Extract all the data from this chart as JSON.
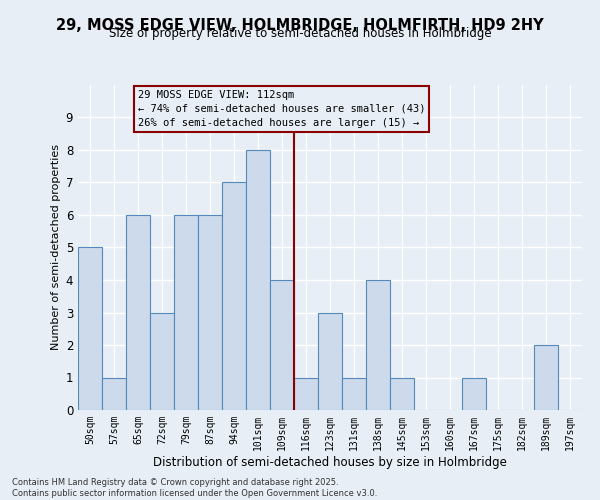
{
  "title_line1": "29, MOSS EDGE VIEW, HOLMBRIDGE, HOLMFIRTH, HD9 2HY",
  "title_line2": "Size of property relative to semi-detached houses in Holmbridge",
  "xlabel": "Distribution of semi-detached houses by size in Holmbridge",
  "ylabel": "Number of semi-detached properties",
  "categories": [
    "50sqm",
    "57sqm",
    "65sqm",
    "72sqm",
    "79sqm",
    "87sqm",
    "94sqm",
    "101sqm",
    "109sqm",
    "116sqm",
    "123sqm",
    "131sqm",
    "138sqm",
    "145sqm",
    "153sqm",
    "160sqm",
    "167sqm",
    "175sqm",
    "182sqm",
    "189sqm",
    "197sqm"
  ],
  "values": [
    5,
    1,
    6,
    3,
    6,
    6,
    7,
    8,
    4,
    1,
    3,
    1,
    4,
    1,
    0,
    0,
    1,
    0,
    0,
    2,
    0
  ],
  "bar_color": "#ccdaec",
  "bar_edge_color": "#5588bb",
  "background_color": "#e8eef5",
  "grid_color": "#ffffff",
  "vline_x_index": 8,
  "vline_color": "#8b0000",
  "annotation_text": "29 MOSS EDGE VIEW: 112sqm\n← 74% of semi-detached houses are smaller (43)\n26% of semi-detached houses are larger (15) →",
  "annotation_box_color": "#8b0000",
  "ylim": [
    0,
    10
  ],
  "yticks": [
    0,
    1,
    2,
    3,
    4,
    5,
    6,
    7,
    8,
    9,
    10
  ],
  "footer_line1": "Contains HM Land Registry data © Crown copyright and database right 2025.",
  "footer_line2": "Contains public sector information licensed under the Open Government Licence v3.0."
}
